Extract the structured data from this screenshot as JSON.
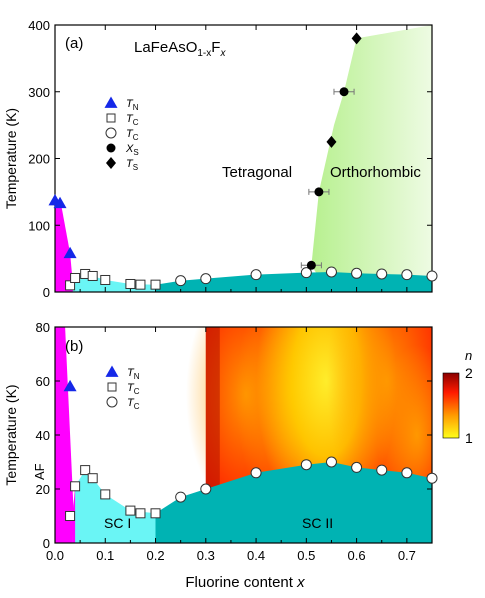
{
  "chart_data": [
    {
      "type": "scatter",
      "panel_label": "(a)",
      "compound": {
        "base": "LaFeAsO",
        "sub1": "1-x",
        "mid": "F",
        "sub2": "x"
      },
      "ylabel": "Temperature (K)",
      "xlim": [
        0,
        0.75
      ],
      "ylim": [
        0,
        400
      ],
      "xticks": [
        0.0,
        0.1,
        0.2,
        0.3,
        0.4,
        0.5,
        0.6,
        0.7
      ],
      "yticks": [
        0,
        100,
        200,
        300,
        400
      ],
      "region_labels": [
        "Tetragonal",
        "Orthorhombic"
      ],
      "legend": [
        {
          "sym": "T",
          "sub": "N",
          "marker": "triangle"
        },
        {
          "sym": "T",
          "sub": "C",
          "marker": "square"
        },
        {
          "sym": "T",
          "sub": "C",
          "marker": "circle"
        },
        {
          "sym": "X",
          "sub": "S",
          "marker": "dot"
        },
        {
          "sym": "T",
          "sub": "S",
          "marker": "diamond"
        }
      ],
      "series": [
        {
          "marker": "triangle",
          "x": [
            0.0,
            0.01,
            0.03
          ],
          "y": [
            137,
            133,
            58
          ]
        },
        {
          "marker": "square",
          "x": [
            0.03,
            0.04,
            0.06,
            0.075,
            0.1,
            0.15,
            0.17,
            0.2
          ],
          "y": [
            10,
            21,
            27,
            24,
            18,
            12,
            11,
            11
          ]
        },
        {
          "marker": "circle",
          "x": [
            0.25,
            0.3,
            0.4,
            0.5,
            0.55,
            0.6,
            0.65,
            0.7,
            0.75
          ],
          "y": [
            17,
            20,
            26,
            29,
            30,
            28,
            27,
            26,
            24
          ]
        },
        {
          "marker": "dot",
          "x": [
            0.51,
            0.525,
            0.575
          ],
          "y": [
            40,
            150,
            300
          ],
          "xerr": [
            0.02,
            0.02,
            0.02
          ]
        },
        {
          "marker": "diamond",
          "x": [
            0.55,
            0.6
          ],
          "y": [
            225,
            380
          ]
        }
      ]
    },
    {
      "type": "heatmap",
      "panel_label": "(b)",
      "ylabel": "Temperature (K)",
      "xlabel": "Fluorine content x",
      "xlim": [
        0,
        0.75
      ],
      "ylim": [
        0,
        80
      ],
      "xticks": [
        0.0,
        0.1,
        0.2,
        0.3,
        0.4,
        0.5,
        0.6,
        0.7
      ],
      "yticks": [
        0,
        20,
        40,
        60,
        80
      ],
      "region_labels": [
        "AF",
        "SC I",
        "SC II"
      ],
      "colorbar": {
        "label": "n",
        "min": 1,
        "max": 2,
        "colors": [
          "#ffff1a",
          "#ff9a00",
          "#ff1a00",
          "#8a0000"
        ]
      },
      "legend": [
        {
          "sym": "T",
          "sub": "N",
          "marker": "triangle"
        },
        {
          "sym": "T",
          "sub": "C",
          "marker": "square"
        },
        {
          "sym": "T",
          "sub": "C",
          "marker": "circle"
        }
      ],
      "series": [
        {
          "marker": "triangle",
          "x": [
            0.03
          ],
          "y": [
            58
          ]
        },
        {
          "marker": "square",
          "x": [
            0.03,
            0.04,
            0.06,
            0.075,
            0.1,
            0.15,
            0.17,
            0.2
          ],
          "y": [
            10,
            21,
            27,
            24,
            18,
            12,
            11,
            11
          ]
        },
        {
          "marker": "circle",
          "x": [
            0.25,
            0.3,
            0.4,
            0.5,
            0.55,
            0.6,
            0.65,
            0.7,
            0.75
          ],
          "y": [
            17,
            20,
            26,
            29,
            30,
            28,
            27,
            26,
            24
          ]
        }
      ]
    }
  ]
}
